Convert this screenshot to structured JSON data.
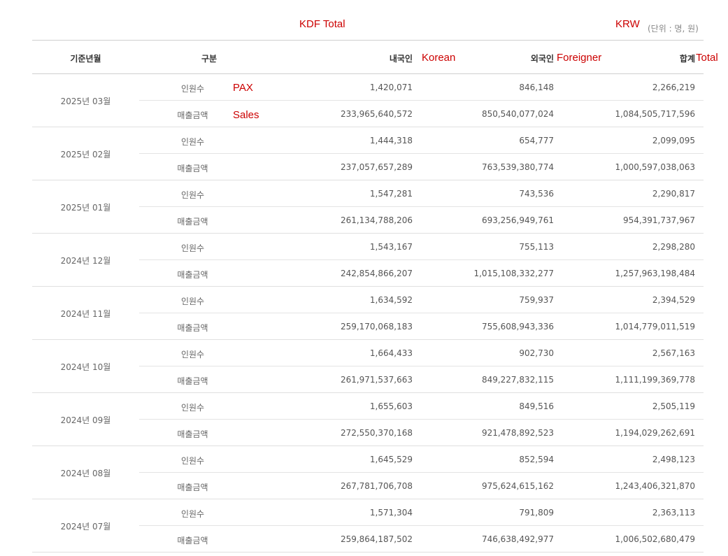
{
  "annotations": {
    "kdf_total": "KDF Total",
    "krw": "KRW",
    "korean": "Korean",
    "foreigner": "Foreigner",
    "total": "Total",
    "pax": "PAX",
    "sales": "Sales"
  },
  "unit_note": "(단위 : 명, 원)",
  "headers": {
    "month": "기준년월",
    "category": "구분",
    "korean": "내국인",
    "foreigner": "외국인",
    "total": "합계"
  },
  "labels": {
    "pax": "인원수",
    "sales": "매출금액"
  },
  "rows": [
    {
      "month": "2025년 03월",
      "pax": {
        "korean": "1,420,071",
        "foreigner": "846,148",
        "total": "2,266,219"
      },
      "sales": {
        "korean": "233,965,640,572",
        "foreigner": "850,540,077,024",
        "total": "1,084,505,717,596"
      }
    },
    {
      "month": "2025년 02월",
      "pax": {
        "korean": "1,444,318",
        "foreigner": "654,777",
        "total": "2,099,095"
      },
      "sales": {
        "korean": "237,057,657,289",
        "foreigner": "763,539,380,774",
        "total": "1,000,597,038,063"
      }
    },
    {
      "month": "2025년 01월",
      "pax": {
        "korean": "1,547,281",
        "foreigner": "743,536",
        "total": "2,290,817"
      },
      "sales": {
        "korean": "261,134,788,206",
        "foreigner": "693,256,949,761",
        "total": "954,391,737,967"
      }
    },
    {
      "month": "2024년 12월",
      "pax": {
        "korean": "1,543,167",
        "foreigner": "755,113",
        "total": "2,298,280"
      },
      "sales": {
        "korean": "242,854,866,207",
        "foreigner": "1,015,108,332,277",
        "total": "1,257,963,198,484"
      }
    },
    {
      "month": "2024년 11월",
      "pax": {
        "korean": "1,634,592",
        "foreigner": "759,937",
        "total": "2,394,529"
      },
      "sales": {
        "korean": "259,170,068,183",
        "foreigner": "755,608,943,336",
        "total": "1,014,779,011,519"
      }
    },
    {
      "month": "2024년 10월",
      "pax": {
        "korean": "1,664,433",
        "foreigner": "902,730",
        "total": "2,567,163"
      },
      "sales": {
        "korean": "261,971,537,663",
        "foreigner": "849,227,832,115",
        "total": "1,111,199,369,778"
      }
    },
    {
      "month": "2024년 09월",
      "pax": {
        "korean": "1,655,603",
        "foreigner": "849,516",
        "total": "2,505,119"
      },
      "sales": {
        "korean": "272,550,370,168",
        "foreigner": "921,478,892,523",
        "total": "1,194,029,262,691"
      }
    },
    {
      "month": "2024년 08월",
      "pax": {
        "korean": "1,645,529",
        "foreigner": "852,594",
        "total": "2,498,123"
      },
      "sales": {
        "korean": "267,781,706,708",
        "foreigner": "975,624,615,162",
        "total": "1,243,406,321,870"
      }
    },
    {
      "month": "2024년 07월",
      "pax": {
        "korean": "1,571,304",
        "foreigner": "791,809",
        "total": "2,363,113"
      },
      "sales": {
        "korean": "259,864,187,502",
        "foreigner": "746,638,492,977",
        "total": "1,006,502,680,479"
      }
    }
  ]
}
